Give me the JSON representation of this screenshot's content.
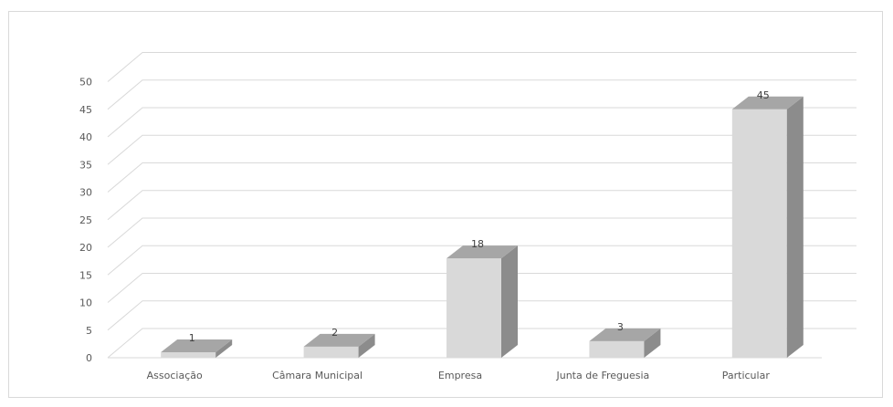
{
  "chart_data": {
    "type": "bar",
    "style": "3d-column",
    "categories": [
      "Associação",
      "Câmara Municipal",
      "Empresa",
      "Junta de Freguesia",
      "Particular"
    ],
    "values": [
      1,
      2,
      18,
      3,
      45
    ],
    "data_labels": [
      "1",
      "2",
      "18",
      "3",
      "45"
    ],
    "yticks": [
      "0",
      "5",
      "10",
      "15",
      "20",
      "25",
      "30",
      "35",
      "40",
      "45",
      "50"
    ],
    "ylim": [
      0,
      50
    ],
    "grid": true,
    "legend": "none",
    "colors": {
      "bar_front": "#d9d9d9",
      "bar_side": "#8c8c8c",
      "bar_top": "#a6a6a6",
      "grid": "#d9d9d9",
      "text": "#595959"
    }
  }
}
